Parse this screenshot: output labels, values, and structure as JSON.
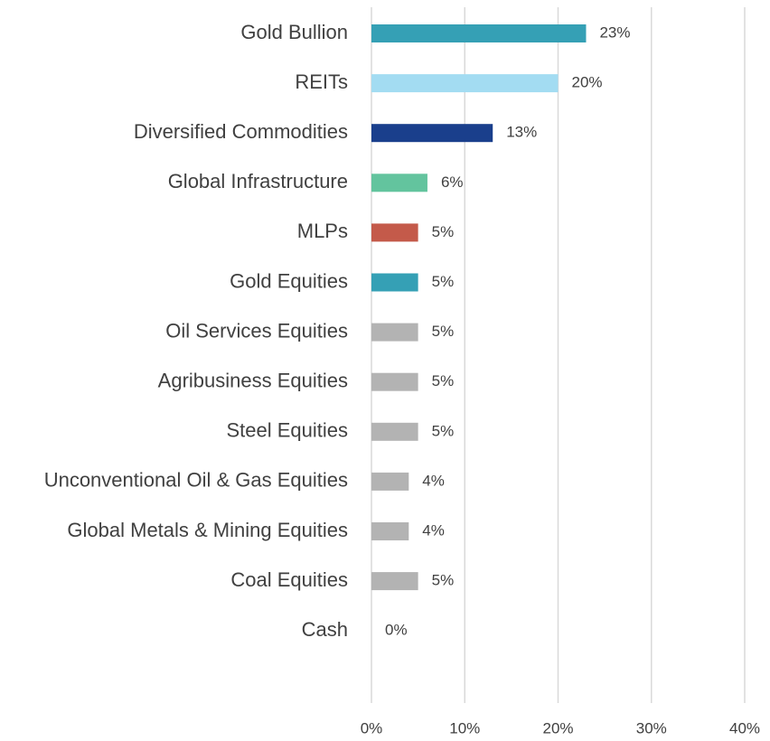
{
  "chart_data": {
    "type": "hbar",
    "categories": [
      "Gold Bullion",
      "REITs",
      "Diversified Commodities",
      "Global Infrastructure",
      "MLPs",
      "Gold Equities",
      "Oil Services Equities",
      "Agribusiness Equities",
      "Steel Equities",
      "Unconventional Oil & Gas Equities",
      "Global Metals & Mining Equities",
      "Coal Equities",
      "Cash"
    ],
    "values": [
      23,
      20,
      13,
      6,
      5,
      5,
      5,
      5,
      5,
      4,
      4,
      5,
      0
    ],
    "value_labels": [
      "23%",
      "20%",
      "13%",
      "6%",
      "5%",
      "5%",
      "5%",
      "5%",
      "5%",
      "4%",
      "4%",
      "5%",
      "0%"
    ],
    "colors": [
      "#35a0b5",
      "#a3dcf2",
      "#1a3f8c",
      "#63c49e",
      "#c45a4a",
      "#35a0b5",
      "#b3b3b3",
      "#b3b3b3",
      "#b3b3b3",
      "#b3b3b3",
      "#b3b3b3",
      "#b3b3b3",
      "#b3b3b3"
    ],
    "xlim": [
      0,
      40
    ],
    "xticks": [
      {
        "value": 0,
        "label": "0%"
      },
      {
        "value": 10,
        "label": "10%"
      },
      {
        "value": 20,
        "label": "20%"
      },
      {
        "value": 30,
        "label": "30%"
      },
      {
        "value": 40,
        "label": "40%"
      }
    ],
    "grid": true
  }
}
